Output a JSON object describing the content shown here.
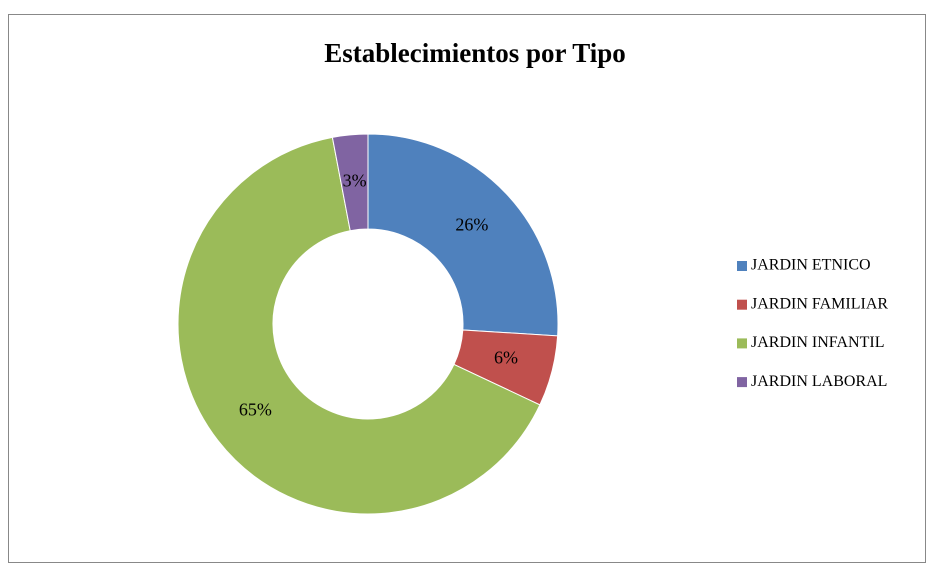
{
  "chart_data": {
    "type": "donut",
    "title": "Establecimientos por Tipo",
    "categories": [
      "JARDIN ETNICO",
      "JARDIN FAMILIAR",
      "JARDIN INFANTIL",
      "JARDIN LABORAL"
    ],
    "values": [
      26,
      6,
      65,
      3
    ],
    "value_labels": [
      "26%",
      "6%",
      "65%",
      "3%"
    ],
    "colors": [
      "#4f81bd",
      "#c0504d",
      "#9bbb59",
      "#8064a2"
    ],
    "legend": "right"
  }
}
